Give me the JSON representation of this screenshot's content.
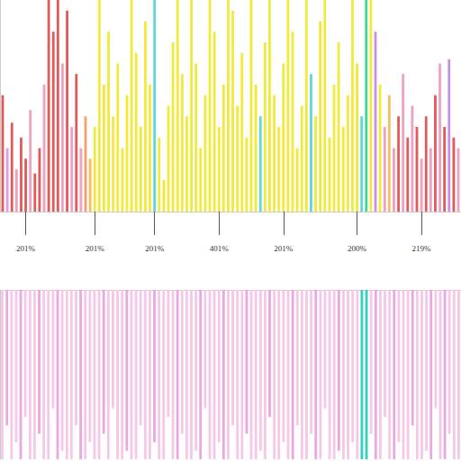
{
  "chart_data": [
    {
      "type": "bar",
      "categories": [
        null,
        null,
        null,
        null,
        null,
        "201%",
        null,
        null,
        null,
        null,
        null,
        null,
        null,
        null,
        null,
        null,
        null,
        null,
        null,
        null,
        "201%",
        null,
        null,
        null,
        null,
        null,
        null,
        null,
        null,
        null,
        null,
        null,
        null,
        "201%",
        null,
        null,
        null,
        null,
        null,
        null,
        null,
        null,
        null,
        null,
        null,
        null,
        null,
        "401%",
        null,
        null,
        null,
        null,
        null,
        null,
        null,
        null,
        null,
        null,
        null,
        null,
        null,
        "201%",
        null,
        null,
        null,
        null,
        null,
        null,
        null,
        null,
        null,
        null,
        null,
        null,
        null,
        null,
        null,
        "200%",
        null,
        null,
        null,
        null,
        null,
        null,
        null,
        null,
        null,
        null,
        null,
        null,
        null,
        "219%",
        null,
        null,
        null,
        null,
        null,
        null,
        null,
        null
      ],
      "values": [
        55,
        30,
        42,
        20,
        35,
        25,
        48,
        18,
        30,
        60,
        100,
        85,
        100,
        70,
        95,
        40,
        65,
        30,
        45,
        25,
        40,
        100,
        60,
        85,
        45,
        70,
        30,
        55,
        100,
        75,
        40,
        90,
        60,
        100,
        35,
        15,
        50,
        80,
        100,
        65,
        45,
        100,
        70,
        30,
        55,
        100,
        85,
        40,
        60,
        100,
        95,
        50,
        75,
        35,
        100,
        60,
        45,
        80,
        100,
        55,
        40,
        70,
        100,
        85,
        30,
        50,
        100,
        65,
        45,
        90,
        100,
        35,
        60,
        80,
        40,
        55,
        100,
        70,
        45,
        100,
        100,
        85,
        60,
        40,
        55,
        30,
        45,
        65,
        35,
        50,
        40,
        25,
        45,
        30,
        55,
        70,
        40,
        72,
        35,
        30
      ],
      "colors": [
        "#e05a5a",
        "#d9a0e8",
        "#e05a5a",
        "#f0a0c0",
        "#e05a5a",
        "#e05a5a",
        "#f0a0c0",
        "#e05a5a",
        "#e05a5a",
        "#f0a0c0",
        "#e05a5a",
        "#e05a5a",
        "#e05a5a",
        "#f0a0c0",
        "#e05a5a",
        "#f0a0c0",
        "#e05a5a",
        "#f0a0c0",
        "#f2a070",
        "#f2c060",
        "#f2ea3a",
        "#f2ea3a",
        "#f2ea3a",
        "#f2ea3a",
        "#f2ea3a",
        "#f2ea3a",
        "#f2ea3a",
        "#f2ea3a",
        "#f2ea3a",
        "#f2ea3a",
        "#f2ea3a",
        "#f2ea3a",
        "#f2ea3a",
        "#5fd8d8",
        "#f2ea3a",
        "#f2ea3a",
        "#f2ea3a",
        "#f2ea3a",
        "#f2ea3a",
        "#f2ea3a",
        "#f2ea3a",
        "#f2ea3a",
        "#f2ea3a",
        "#f2ea3a",
        "#f2ea3a",
        "#f2ea3a",
        "#f2ea3a",
        "#f2ea3a",
        "#f2ea3a",
        "#f2ea3a",
        "#f2ea3a",
        "#f2ea3a",
        "#f2ea3a",
        "#f2ea3a",
        "#f2ea3a",
        "#f2ea3a",
        "#5fd8d8",
        "#f2ea3a",
        "#f2ea3a",
        "#f2ea3a",
        "#f2ea3a",
        "#f2ea3a",
        "#f2ea3a",
        "#f2ea3a",
        "#f2ea3a",
        "#f2ea3a",
        "#f2ea3a",
        "#5fd8d8",
        "#f2ea3a",
        "#f2ea3a",
        "#f2ea3a",
        "#f2ea3a",
        "#f2ea3a",
        "#f2ea3a",
        "#f2ea3a",
        "#f2ea3a",
        "#f2ea3a",
        "#f2ea3a",
        "#5fd8d8",
        "#3ad890",
        "#f2ea3a",
        "#c890e0",
        "#f2ea3a",
        "#f0a0c0",
        "#f2c060",
        "#f0a0c0",
        "#e05a5a",
        "#f0a0c0",
        "#e05a5a",
        "#f0a0c0",
        "#e05a5a",
        "#f0a0c0",
        "#e05a5a",
        "#f0a0c0",
        "#e05a5a",
        "#f0a0c0",
        "#e05a5a",
        "#c890e0",
        "#e05a5a",
        "#f0a0c0"
      ],
      "ylim": [
        0,
        100
      ],
      "grid": false,
      "tick_labels": "x"
    },
    {
      "type": "bar",
      "categories": [
        null,
        null,
        null,
        null,
        null,
        null,
        null,
        null,
        null,
        null,
        null,
        null,
        null,
        null,
        null,
        null,
        null,
        null,
        null,
        null,
        null,
        null,
        null,
        null,
        null,
        null,
        null,
        null,
        null,
        null,
        null,
        null,
        null,
        null,
        null,
        null,
        null,
        null,
        null,
        null,
        null,
        null,
        null,
        null,
        null,
        null,
        null,
        null,
        null,
        null,
        null,
        null,
        null,
        null,
        null,
        null,
        null,
        null,
        null,
        null,
        null,
        null,
        null,
        null,
        null,
        null,
        null,
        null,
        null,
        null,
        null,
        null,
        null,
        null,
        null,
        null,
        null,
        null,
        null,
        null,
        null,
        null,
        null,
        null,
        null,
        null,
        null,
        null,
        null,
        null,
        null,
        null,
        null,
        null,
        null,
        null,
        null,
        null,
        null,
        null
      ],
      "values": [
        -100,
        -80,
        -100,
        -90,
        -100,
        -75,
        -100,
        -100,
        -85,
        -100,
        -100,
        -70,
        -100,
        -95,
        -100,
        -100,
        -80,
        -100,
        -100,
        -90,
        -100,
        -100,
        -85,
        -100,
        -70,
        -100,
        -100,
        -95,
        -100,
        -100,
        -80,
        -100,
        -100,
        -90,
        -100,
        -100,
        -75,
        -100,
        -100,
        -85,
        -100,
        -100,
        -95,
        -100,
        -70,
        -100,
        -100,
        -90,
        -100,
        -100,
        -80,
        -100,
        -100,
        -85,
        -100,
        -100,
        -95,
        -100,
        -75,
        -100,
        -100,
        -90,
        -100,
        -100,
        -80,
        -100,
        -100,
        -85,
        -100,
        -100,
        -70,
        -100,
        -100,
        -95,
        -100,
        -100,
        -90,
        -100,
        -100,
        -100,
        -85,
        -100,
        -100,
        -75,
        -100,
        -100,
        -90,
        -100,
        -100,
        -80,
        -100,
        -100,
        -95,
        -100,
        -70,
        -100,
        -100,
        -85,
        -100,
        -100
      ],
      "colors": [
        "#f5c8e8",
        "#e8a8e0",
        "#f5c8e8",
        "#f5c8e8",
        "#e8a8e0",
        "#f5c8e8",
        "#f5c8e8",
        "#f5c8e8",
        "#e8a8e0",
        "#f5c8e8",
        "#f5c8e8",
        "#f5c8e8",
        "#e8a8e0",
        "#f5c8e8",
        "#f5c8e8",
        "#f5c8e8",
        "#f5c8e8",
        "#e8a8e0",
        "#f5c8e8",
        "#f5c8e8",
        "#f5c8e8",
        "#f5c8e8",
        "#e8a8e0",
        "#f5c8e8",
        "#f5c8e8",
        "#f5c8e8",
        "#f5c8e8",
        "#e8a8e0",
        "#f5c8e8",
        "#f5c8e8",
        "#f5c8e8",
        "#f5c8e8",
        "#f5c8e8",
        "#e8a8e0",
        "#f5c8e8",
        "#f5c8e8",
        "#f5c8e8",
        "#f5c8e8",
        "#e8a8e0",
        "#f5c8e8",
        "#f5c8e8",
        "#f5c8e8",
        "#f5c8e8",
        "#e8a8e0",
        "#f5c8e8",
        "#f5c8e8",
        "#f5c8e8",
        "#f5c8e8",
        "#e8a8e0",
        "#f5c8e8",
        "#f5c8e8",
        "#f5c8e8",
        "#f5c8e8",
        "#e8a8e0",
        "#f5c8e8",
        "#f5c8e8",
        "#f5c8e8",
        "#f5c8e8",
        "#e8a8e0",
        "#f5c8e8",
        "#f5c8e8",
        "#f5c8e8",
        "#f5c8e8",
        "#e8a8e0",
        "#f5c8e8",
        "#f5c8e8",
        "#f5c8e8",
        "#f5c8e8",
        "#e8a8e0",
        "#f5c8e8",
        "#f5c8e8",
        "#f5c8e8",
        "#f5c8e8",
        "#e8a8e0",
        "#f5c8e8",
        "#f5c8e8",
        "#f5c8e8",
        "#f5c8e8",
        "#30d0c0",
        "#30d0c0",
        "#f5c8e8",
        "#e8a8e0",
        "#f5c8e8",
        "#f5c8e8",
        "#f5c8e8",
        "#e8a8e0",
        "#f5c8e8",
        "#f5c8e8",
        "#f5c8e8",
        "#e8a8e0",
        "#f5c8e8",
        "#f5c8e8",
        "#f5c8e8",
        "#e8a8e0",
        "#f5c8e8",
        "#f5c8e8",
        "#e8a8e0",
        "#f5c8e8",
        "#f5c8e8",
        "#f5c8e8"
      ],
      "ylim": [
        -100,
        0
      ],
      "grid": false,
      "tick_labels": false
    }
  ]
}
